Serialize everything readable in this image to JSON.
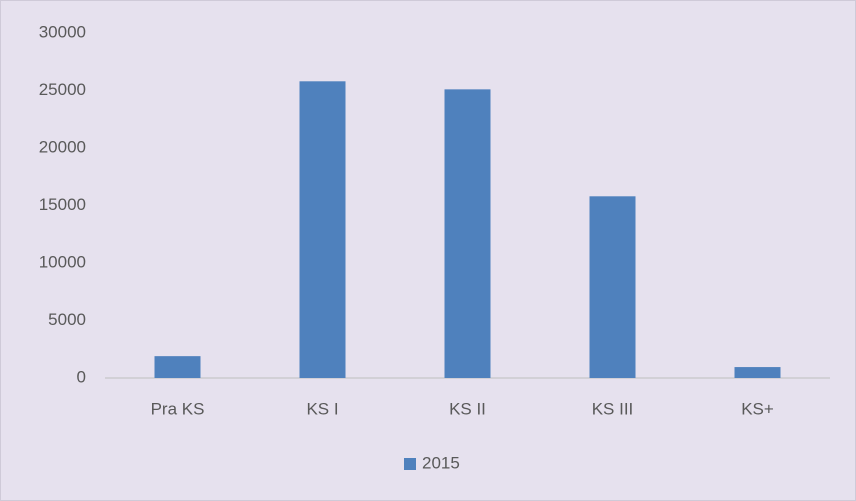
{
  "chart_data": {
    "type": "bar",
    "categories": [
      "Pra KS",
      "KS I",
      "KS II",
      "KS III",
      "KS+"
    ],
    "series": [
      {
        "name": "2015",
        "color": "#4f81bd",
        "values": [
          1900,
          25800,
          25100,
          15800,
          950
        ]
      }
    ],
    "ylim": [
      0,
      30000
    ],
    "yticks": [
      0,
      5000,
      10000,
      15000,
      20000,
      25000,
      30000
    ],
    "grid": false,
    "legend": "bottom"
  }
}
